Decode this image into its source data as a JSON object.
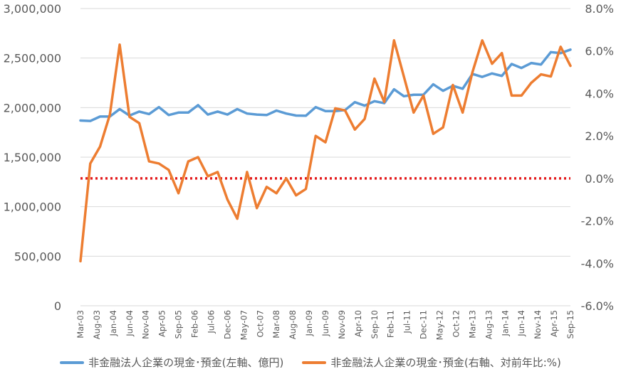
{
  "chart_data": {
    "type": "line",
    "x_labels": [
      "Mar-03",
      "Aug-03",
      "Jan-04",
      "Jun-04",
      "Nov-04",
      "Apr-05",
      "Sep-05",
      "Feb-06",
      "Jul-06",
      "Dec-06",
      "May-07",
      "Oct-07",
      "Mar-08",
      "Aug-08",
      "Jan-09",
      "Jun-09",
      "Nov-09",
      "Apr-10",
      "Sep-10",
      "Feb-11",
      "Jul-11",
      "Dec-11",
      "May-12",
      "Oct-12",
      "Mar-13",
      "Aug-13",
      "Jan-14",
      "Jun-14",
      "Nov-14",
      "Apr-15",
      "Sep-15"
    ],
    "y_left": {
      "range": [
        0,
        3000000
      ],
      "ticks": [
        "0",
        "500,000",
        "1,000,000",
        "1,500,000",
        "2,000,000",
        "2,500,000",
        "3,000,000"
      ]
    },
    "y_right": {
      "range": [
        -6.0,
        8.0
      ],
      "ticks": [
        "-6.0%",
        "-4.0%",
        "-2.0%",
        "0.0%",
        "2.0%",
        "4.0%",
        "6.0%",
        "8.0%"
      ]
    },
    "reference_line": {
      "axis": "right",
      "value": 0.0,
      "color": "#e41a1c",
      "style": "dotted"
    },
    "grid": true,
    "legend_position": "bottom",
    "series": [
      {
        "name": "非金融法人企業の現金･預金(左軸、億円)",
        "axis": "left",
        "color": "#5b9bd5",
        "values": [
          1870000,
          1865000,
          1910000,
          1910000,
          1985000,
          1920000,
          1960000,
          1935000,
          2005000,
          1925000,
          1950000,
          1950000,
          2025000,
          1930000,
          1960000,
          1930000,
          1985000,
          1940000,
          1930000,
          1925000,
          1970000,
          1940000,
          1920000,
          1918000,
          2005000,
          1965000,
          1965000,
          1975000,
          2055000,
          2020000,
          2065000,
          2045000,
          2185000,
          2115000,
          2130000,
          2130000,
          2235000,
          2170000,
          2220000,
          2190000,
          2340000,
          2310000,
          2345000,
          2320000,
          2440000,
          2400000,
          2450000,
          2435000,
          2560000,
          2550000,
          2585000
        ]
      },
      {
        "name": "非金融法人企業の現金･預金(右軸、対前年比:%)",
        "axis": "right",
        "color": "#ed7d31",
        "values": [
          -3.9,
          0.7,
          1.5,
          3.0,
          6.3,
          2.9,
          2.6,
          0.8,
          0.7,
          0.4,
          -0.7,
          0.8,
          1.0,
          0.1,
          0.3,
          -1.0,
          -1.9,
          0.3,
          -1.4,
          -0.4,
          -0.7,
          0.0,
          -0.8,
          -0.5,
          2.0,
          1.7,
          3.3,
          3.2,
          2.3,
          2.8,
          4.7,
          3.6,
          6.5,
          4.8,
          3.1,
          3.9,
          2.1,
          2.4,
          4.4,
          3.1,
          5.0,
          6.5,
          5.4,
          5.9,
          3.9,
          3.9,
          4.5,
          4.9,
          4.8,
          6.2,
          5.3
        ]
      }
    ]
  }
}
